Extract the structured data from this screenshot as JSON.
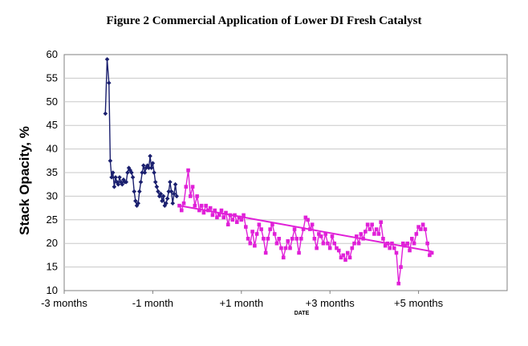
{
  "figure_title": "Figure 2 Commercial Application of Lower DI Fresh Catalyst",
  "chart_data": {
    "type": "line",
    "title": "Figure 2 Commercial Application of Lower DI Fresh Catalyst",
    "xlabel": "DATE",
    "ylabel": "Stack Opacity, %",
    "ylim": [
      10,
      60
    ],
    "yticks": [
      10,
      15,
      20,
      25,
      30,
      35,
      40,
      45,
      50,
      55,
      60
    ],
    "xlim": [
      -3,
      7
    ],
    "xticks": [
      {
        "value": -3,
        "label": "-3 months"
      },
      {
        "value": -1,
        "label": "-1 month"
      },
      {
        "value": 1,
        "label": "+1 month"
      },
      {
        "value": 3,
        "label": "+3 months"
      },
      {
        "value": 5,
        "label": "+5 months"
      }
    ],
    "grid": true,
    "series": [
      {
        "color": "#1a1f6e",
        "marker": "diamond",
        "points": [
          [
            -2.07,
            47.5
          ],
          [
            -2.03,
            59
          ],
          [
            -1.99,
            54
          ],
          [
            -1.96,
            37.5
          ],
          [
            -1.93,
            34
          ],
          [
            -1.9,
            35
          ],
          [
            -1.87,
            32
          ],
          [
            -1.84,
            34
          ],
          [
            -1.81,
            33
          ],
          [
            -1.78,
            32.5
          ],
          [
            -1.75,
            34
          ],
          [
            -1.72,
            33
          ],
          [
            -1.69,
            32.5
          ],
          [
            -1.66,
            33.5
          ],
          [
            -1.63,
            33
          ],
          [
            -1.6,
            33
          ],
          [
            -1.57,
            35
          ],
          [
            -1.54,
            36
          ],
          [
            -1.51,
            35.5
          ],
          [
            -1.48,
            35
          ],
          [
            -1.45,
            34
          ],
          [
            -1.42,
            31
          ],
          [
            -1.39,
            29
          ],
          [
            -1.36,
            28
          ],
          [
            -1.33,
            28.5
          ],
          [
            -1.3,
            31
          ],
          [
            -1.27,
            33
          ],
          [
            -1.24,
            35
          ],
          [
            -1.21,
            36.5
          ],
          [
            -1.18,
            35
          ],
          [
            -1.15,
            36
          ],
          [
            -1.12,
            36.5
          ],
          [
            -1.09,
            36
          ],
          [
            -1.06,
            38.5
          ],
          [
            -1.03,
            36
          ],
          [
            -1.0,
            37
          ],
          [
            -0.97,
            35
          ],
          [
            -0.94,
            33
          ],
          [
            -0.91,
            32
          ],
          [
            -0.88,
            31
          ],
          [
            -0.85,
            30
          ],
          [
            -0.82,
            30.5
          ],
          [
            -0.79,
            29
          ],
          [
            -0.76,
            30
          ],
          [
            -0.73,
            28
          ],
          [
            -0.7,
            28.5
          ],
          [
            -0.67,
            29.5
          ],
          [
            -0.64,
            31
          ],
          [
            -0.61,
            33
          ],
          [
            -0.58,
            31
          ],
          [
            -0.55,
            28.5
          ],
          [
            -0.52,
            30.5
          ],
          [
            -0.49,
            32.5
          ],
          [
            -0.46,
            30
          ]
        ]
      },
      {
        "color": "#e020d8",
        "marker": "square",
        "points": [
          [
            -0.4,
            28
          ],
          [
            -0.35,
            27
          ],
          [
            -0.3,
            28.5
          ],
          [
            -0.25,
            32
          ],
          [
            -0.2,
            35.5
          ],
          [
            -0.15,
            30
          ],
          [
            -0.1,
            32
          ],
          [
            -0.05,
            28
          ],
          [
            0.0,
            30
          ],
          [
            0.05,
            27
          ],
          [
            0.1,
            28
          ],
          [
            0.15,
            26.5
          ],
          [
            0.2,
            28
          ],
          [
            0.25,
            27
          ],
          [
            0.3,
            27.5
          ],
          [
            0.35,
            26
          ],
          [
            0.4,
            27
          ],
          [
            0.45,
            25.5
          ],
          [
            0.5,
            26
          ],
          [
            0.55,
            27
          ],
          [
            0.6,
            25.5
          ],
          [
            0.65,
            26.5
          ],
          [
            0.7,
            24
          ],
          [
            0.75,
            26
          ],
          [
            0.8,
            25
          ],
          [
            0.85,
            26
          ],
          [
            0.9,
            24.5
          ],
          [
            0.95,
            25.5
          ],
          [
            1.0,
            25
          ],
          [
            1.05,
            26
          ],
          [
            1.1,
            23.5
          ],
          [
            1.15,
            21
          ],
          [
            1.2,
            20
          ],
          [
            1.25,
            22.5
          ],
          [
            1.3,
            19.5
          ],
          [
            1.35,
            22
          ],
          [
            1.4,
            24
          ],
          [
            1.45,
            23
          ],
          [
            1.5,
            21
          ],
          [
            1.55,
            18
          ],
          [
            1.6,
            21
          ],
          [
            1.65,
            23
          ],
          [
            1.7,
            24
          ],
          [
            1.75,
            22
          ],
          [
            1.8,
            20
          ],
          [
            1.85,
            21
          ],
          [
            1.9,
            19
          ],
          [
            1.95,
            17
          ],
          [
            2.0,
            19
          ],
          [
            2.05,
            20.5
          ],
          [
            2.1,
            19
          ],
          [
            2.15,
            21
          ],
          [
            2.2,
            23
          ],
          [
            2.25,
            21
          ],
          [
            2.3,
            18
          ],
          [
            2.35,
            21
          ],
          [
            2.4,
            23
          ],
          [
            2.45,
            25.5
          ],
          [
            2.5,
            25
          ],
          [
            2.55,
            23
          ],
          [
            2.6,
            24
          ],
          [
            2.65,
            21
          ],
          [
            2.7,
            19
          ],
          [
            2.75,
            22
          ],
          [
            2.8,
            21.5
          ],
          [
            2.85,
            20
          ],
          [
            2.9,
            22
          ],
          [
            2.95,
            20
          ],
          [
            3.0,
            19
          ],
          [
            3.05,
            21.5
          ],
          [
            3.1,
            20
          ],
          [
            3.15,
            19
          ],
          [
            3.2,
            18.5
          ],
          [
            3.25,
            17
          ],
          [
            3.3,
            17.5
          ],
          [
            3.35,
            16.5
          ],
          [
            3.4,
            18
          ],
          [
            3.45,
            17
          ],
          [
            3.5,
            19
          ],
          [
            3.55,
            20
          ],
          [
            3.6,
            21.5
          ],
          [
            3.65,
            20
          ],
          [
            3.7,
            22
          ],
          [
            3.75,
            21
          ],
          [
            3.8,
            22.5
          ],
          [
            3.85,
            24
          ],
          [
            3.9,
            23
          ],
          [
            3.95,
            24
          ],
          [
            4.0,
            22
          ],
          [
            4.05,
            23
          ],
          [
            4.1,
            22
          ],
          [
            4.15,
            24.5
          ],
          [
            4.2,
            21
          ],
          [
            4.25,
            19.5
          ],
          [
            4.3,
            20
          ],
          [
            4.35,
            19
          ],
          [
            4.4,
            20
          ],
          [
            4.45,
            19
          ],
          [
            4.5,
            18
          ],
          [
            4.55,
            11.5
          ],
          [
            4.6,
            15
          ],
          [
            4.65,
            20
          ],
          [
            4.7,
            19.5
          ],
          [
            4.75,
            20
          ],
          [
            4.8,
            18.5
          ],
          [
            4.85,
            21
          ],
          [
            4.9,
            20
          ],
          [
            4.95,
            22
          ],
          [
            5.0,
            23.5
          ],
          [
            5.05,
            23
          ],
          [
            5.1,
            24
          ],
          [
            5.15,
            23
          ],
          [
            5.2,
            20
          ],
          [
            5.25,
            17.5
          ],
          [
            5.3,
            18
          ]
        ]
      }
    ],
    "trendline": {
      "color": "#e020d8",
      "from": [
        -0.4,
        28
      ],
      "to": [
        5.3,
        18.3
      ]
    }
  }
}
